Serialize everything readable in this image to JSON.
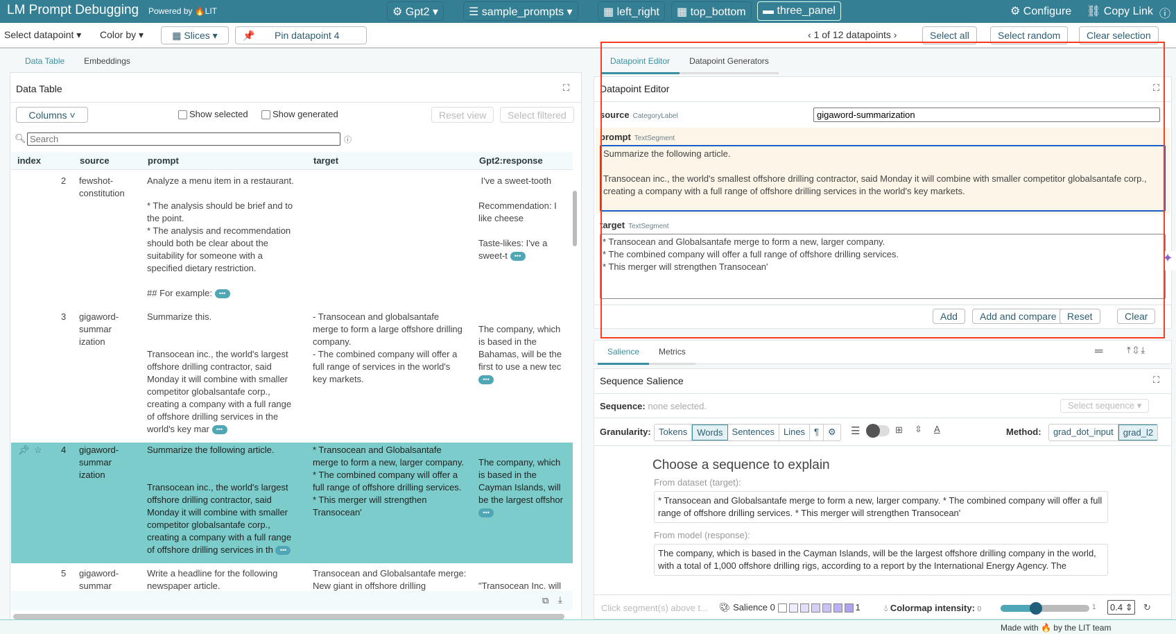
{
  "header": {
    "title": "LM Prompt Debugging",
    "powered": "Powered by",
    "lit": "LIT",
    "model": "Gpt2",
    "dataset": "sample_prompts",
    "layouts": [
      "left_right",
      "top_bottom",
      "three_panel"
    ],
    "configure": "Configure",
    "copy_link": "Copy Link"
  },
  "toolbar": {
    "select_datapoint": "Select datapoint",
    "color_by": "Color by",
    "slices": "Slices",
    "pin": "Pin datapoint 4",
    "count": "1 of 12 datapoints",
    "select_all": "Select all",
    "select_random": "Select random",
    "clear_selection": "Clear selection"
  },
  "left": {
    "tabs": [
      "Data Table",
      "Embeddings"
    ],
    "title": "Data Table",
    "columns_btn": "Columns",
    "show_selected": "Show selected",
    "show_generated": "Show generated",
    "reset_view": "Reset view",
    "select_filtered": "Select filtered",
    "search_placeholder": "Search",
    "headers": [
      "index",
      "source",
      "prompt",
      "target",
      "Gpt2:response"
    ],
    "rows": [
      {
        "index": "2",
        "source": "fewshot-\nconstitution",
        "prompt": "Analyze a menu item in a restaurant.\n\n* The analysis should be brief and to\nthe point.\n* The analysis and recommendation\nshould both be clear about the\nsuitability for someone with a\nspecified dietary restriction.\n\n## For example: ",
        "target": "",
        "response": " I've a sweet-tooth\n\nRecommendation: I\nlike cheese\n\nTaste-likes: I've a\nsweet-t "
      },
      {
        "index": "3",
        "source": "gigaword-\nsummar\nization",
        "prompt": "Summarize this.\n\n\nTransocean inc., the world's largest\noffshore drilling contractor, said\nMonday it will combine with smaller\ncompetitor globalsantafe corp.,\ncreating a company with a full range\nof offshore drilling services in the\nworld's key mar ",
        "target": "- Transocean and globalsantafe\nmerge to form a large offshore drilling\ncompany.\n- The combined company will offer a\nfull range of services in the world's\nkey markets.",
        "response": "\nThe company, which\nis based in the\nBahamas, will be the\nfirst to use a new tec\n"
      },
      {
        "index": "4",
        "source": "gigaword-\nsummar\nization",
        "prompt": "Summarize the following article.\n\n\nTransocean inc., the world's largest\noffshore drilling contractor, said\nMonday it will combine with smaller\ncompetitor globalsantafe corp.,\ncreating a company with a full range\nof offshore drilling services in th ",
        "target": "* Transocean and Globalsantafe\nmerge to form a new, larger company.\n* The combined company will offer a\nfull range of offshore drilling services.\n* This merger will strengthen\nTransocean'",
        "response": "\nThe company, which\nis based in the\nCayman Islands, will\nbe the largest offshor\n"
      },
      {
        "index": "5",
        "source": "gigaword-\nsummar\nization",
        "prompt": "Write a headline for the following\nnewspaper article.\n\n\nTransocean inc., the world's largest\noffshore drilling contractor, said\nMonday it will combine with smaller",
        "target": "Transocean and Globalsantafe merge:\nNew giant in offshore drilling",
        "response": "\n\"Transocean Inc. will\ncombine with\nGlobalsantafe Corp.\nto create a company\nwit"
      }
    ]
  },
  "editor": {
    "tabs": [
      "Datapoint Editor",
      "Datapoint Generators"
    ],
    "title": "Datapoint Editor",
    "source_label": "source",
    "source_type": "CategoryLabel",
    "source_value": "gigaword-summarization",
    "prompt_label": "prompt",
    "prompt_type": "TextSegment",
    "prompt_value": "Summarize the following article.\n\nTransocean inc., the world's smallest offshore drilling contractor, said Monday it will combine with smaller competitor globalsantafe corp., creating a company with a full range of offshore drilling services in the world's key markets.",
    "target_label": "target",
    "target_type": "TextSegment",
    "target_value": "* Transocean and Globalsantafe merge to form a new, larger company.\n* The combined company will offer a full range of offshore drilling services.\n* This merger will strengthen Transocean'",
    "add": "Add",
    "add_compare": "Add and compare",
    "reset": "Reset",
    "clear": "Clear"
  },
  "salience": {
    "tabs": [
      "Salience",
      "Metrics"
    ],
    "title": "Sequence Salience",
    "sequence_label": "Sequence:",
    "sequence_value": "none selected.",
    "select_sequence": "Select sequence",
    "granularity_label": "Granularity:",
    "granularity": [
      "Tokens",
      "Words",
      "Sentences",
      "Lines",
      "¶",
      "⚙"
    ],
    "granularity_selected": "Words",
    "method_label": "Method:",
    "methods": [
      "grad_dot_input",
      "grad_l2"
    ],
    "method_selected": "grad_l2",
    "choose": "Choose a sequence to explain",
    "from_dataset": "From dataset (target):",
    "dataset_text": "* Transocean and Globalsantafe merge to form a new, larger company. * The combined company will offer a full range of offshore drilling services. * This merger will strengthen Transocean'",
    "from_model": "From model (response):",
    "model_text": "The company, which is based in the Cayman Islands, will be the largest offshore drilling company in the world, with a total of 1,000 offshore drilling rigs, according to a report by the International Energy Agency. The",
    "hint": "Click segment(s) above t...",
    "legend_label": "Salience",
    "legend_min": "0",
    "legend_max": "1",
    "legend_colors": [
      "#ffffff",
      "#efedfc",
      "#e3defa",
      "#d6cff8",
      "#c9c0f6",
      "#bcb1f4",
      "#aea2f2"
    ],
    "intensity_label": "Colormap intensity:",
    "intensity_min": "0",
    "intensity_max": "1",
    "intensity_value": "0.4"
  },
  "footer": {
    "text": "Made with 🔥 by the LIT team"
  },
  "colors": {
    "header": "#357f95",
    "accent": "#3a8fa2",
    "selected_row": "#7bcccb",
    "highlight": "#ff3b1f"
  }
}
